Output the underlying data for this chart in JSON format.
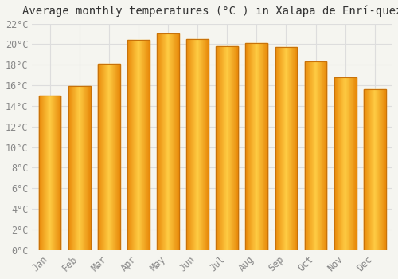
{
  "title": "Average monthly temperatures (°C ) in Xalapa de Enrí-quez",
  "months": [
    "Jan",
    "Feb",
    "Mar",
    "Apr",
    "May",
    "Jun",
    "Jul",
    "Aug",
    "Sep",
    "Oct",
    "Nov",
    "Dec"
  ],
  "values": [
    15.0,
    15.9,
    18.1,
    20.4,
    21.0,
    20.5,
    19.8,
    20.1,
    19.7,
    18.3,
    16.8,
    15.6
  ],
  "bar_color_left": "#E8890A",
  "bar_color_center": "#FFCC44",
  "bar_color_right": "#E8890A",
  "bar_edge_color": "#C8720A",
  "ylim": [
    0,
    22
  ],
  "ytick_step": 2,
  "background_color": "#f5f5f0",
  "plot_bg_color": "#f5f5f0",
  "grid_color": "#dddddd",
  "title_fontsize": 10,
  "tick_fontsize": 8.5,
  "bar_width": 0.75,
  "title_color": "#333333",
  "tick_color": "#888888"
}
